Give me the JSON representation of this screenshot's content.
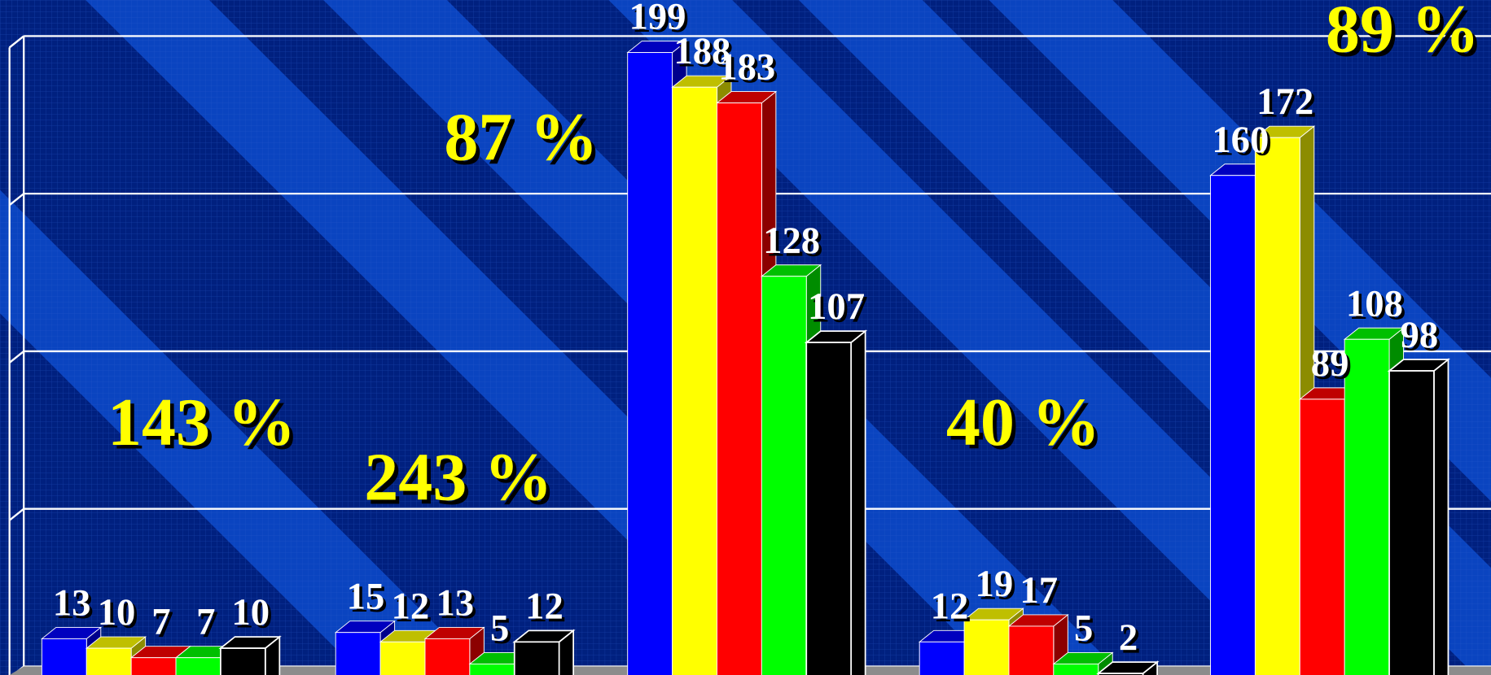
{
  "chart_data": {
    "type": "bar3d",
    "categories": [
      null,
      null,
      null,
      null,
      null
    ],
    "series": [
      {
        "color": "#0000ff",
        "values": [
          13,
          15,
          199,
          12,
          160
        ]
      },
      {
        "color": "#ffff00",
        "values": [
          10,
          12,
          188,
          19,
          172
        ]
      },
      {
        "color": "#ff0000",
        "values": [
          7,
          13,
          183,
          17,
          89
        ]
      },
      {
        "color": "#00ff00",
        "values": [
          7,
          5,
          128,
          5,
          108
        ]
      },
      {
        "color": "#000000",
        "values": [
          10,
          12,
          107,
          2,
          98
        ]
      }
    ],
    "annotations": [
      "143 %",
      "243 %",
      "87 %",
      "40 %",
      "89 %"
    ],
    "ylim": [
      0,
      200
    ],
    "yticks": [
      0,
      50,
      100,
      150,
      200
    ],
    "grid": true
  }
}
